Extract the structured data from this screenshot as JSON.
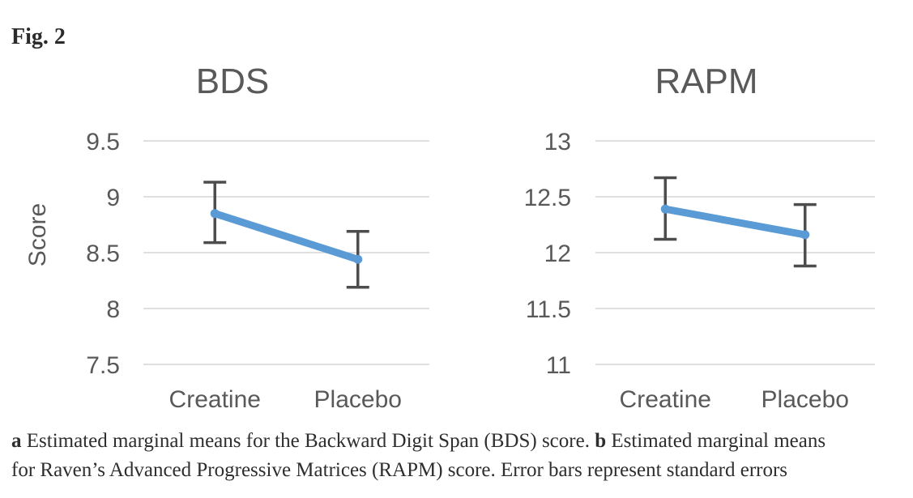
{
  "figure_label": "Fig. 2",
  "colors": {
    "series_blue": "#5b9bd5",
    "error_bar": "#4d4d4d",
    "gridline": "#d6d6d6",
    "axis_text": "#595959",
    "caption_text": "#2e2e2e"
  },
  "chart_data": [
    {
      "type": "line",
      "title": "BDS",
      "ylabel": "Score",
      "xlabel": "",
      "categories": [
        "Creatine",
        "Placebo"
      ],
      "ylim": [
        7.5,
        9.5
      ],
      "yticks": [
        9.5,
        9,
        8.5,
        8,
        7.5
      ],
      "grid": true,
      "legend": "none",
      "series": [
        {
          "name": "Estimated marginal mean",
          "values": [
            8.85,
            8.44
          ],
          "error_low": [
            8.59,
            8.19
          ],
          "error_high": [
            9.13,
            8.69
          ]
        }
      ]
    },
    {
      "type": "line",
      "title": "RAPM",
      "ylabel": "",
      "xlabel": "",
      "categories": [
        "Creatine",
        "Placebo"
      ],
      "ylim": [
        11,
        13
      ],
      "yticks": [
        13,
        12.5,
        12,
        11.5,
        11
      ],
      "grid": true,
      "legend": "none",
      "series": [
        {
          "name": "Estimated marginal mean",
          "values": [
            12.39,
            12.16
          ],
          "error_low": [
            12.12,
            11.88
          ],
          "error_high": [
            12.67,
            12.43
          ]
        }
      ]
    }
  ],
  "caption": {
    "lines": [
      [
        {
          "text": "a",
          "bold": true
        },
        {
          "text": " Estimated marginal means for the Backward Digit Span (BDS) score. ",
          "bold": false
        },
        {
          "text": "b",
          "bold": true
        },
        {
          "text": " Estimated marginal means",
          "bold": false
        }
      ],
      [
        {
          "text": "for Raven’s Advanced Progressive Matrices (RAPM) score. Error bars represent standard errors",
          "bold": false
        }
      ]
    ]
  }
}
